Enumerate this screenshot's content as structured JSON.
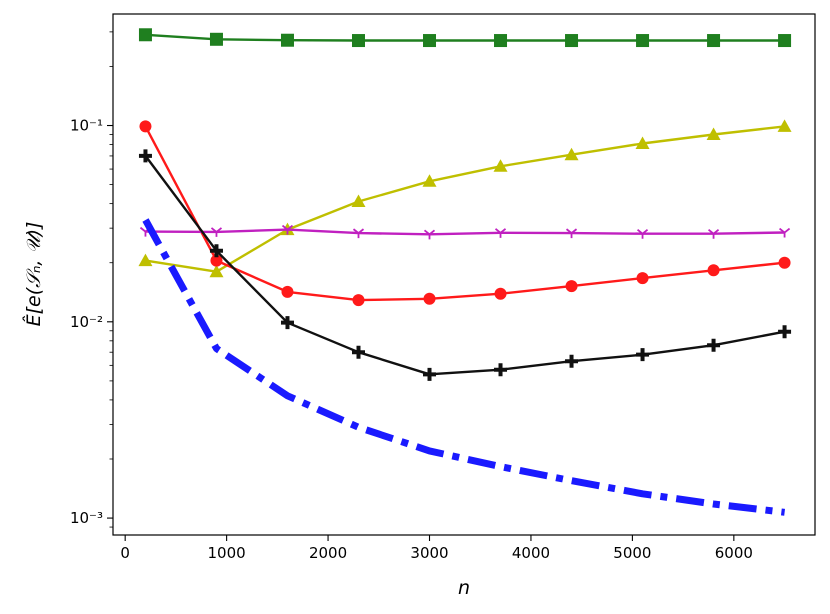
{
  "chart_data": {
    "type": "line",
    "title": "",
    "xlabel": "n",
    "ylabel": "Ê[e(𝒮ₙ, 𝒰)]",
    "xlim": [
      -120,
      6800
    ],
    "ylim": [
      0.00082,
      0.37
    ],
    "yscale": "log",
    "grid": false,
    "legend": "none",
    "x_ticks": [
      0,
      1000,
      2000,
      3000,
      4000,
      5000,
      6000
    ],
    "x_tick_labels": [
      "0",
      "1000",
      "2000",
      "3000",
      "4000",
      "5000",
      "6000"
    ],
    "y_ticks": [
      0.001,
      0.01,
      0.1
    ],
    "y_tick_labels": [
      "10⁻³",
      "10⁻²",
      "10⁻¹"
    ],
    "series": [
      {
        "color": "#1f7f1f",
        "marker": "square",
        "line_style": "solid",
        "x": [
          200,
          900,
          1600,
          2300,
          3000,
          3700,
          4400,
          5100,
          5800,
          6500
        ],
        "values": [
          0.29,
          0.275,
          0.272,
          0.271,
          0.271,
          0.271,
          0.271,
          0.271,
          0.271,
          0.271
        ]
      },
      {
        "color": "#bfbf00",
        "marker": "triangle",
        "line_style": "solid",
        "x": [
          200,
          900,
          1600,
          2300,
          3000,
          3700,
          4400,
          5100,
          5800,
          6500
        ],
        "values": [
          0.0205,
          0.018,
          0.0295,
          0.041,
          0.052,
          0.062,
          0.071,
          0.081,
          0.09,
          0.099
        ]
      },
      {
        "color": "#ff1a1a",
        "marker": "circle",
        "line_style": "solid",
        "x": [
          200,
          900,
          1600,
          2300,
          3000,
          3700,
          4400,
          5100,
          5800,
          6500
        ],
        "values": [
          0.099,
          0.0205,
          0.0142,
          0.0129,
          0.0131,
          0.0139,
          0.0152,
          0.0167,
          0.0183,
          0.02
        ]
      },
      {
        "color": "#c020c0",
        "marker": "tri-down",
        "line_style": "solid",
        "x": [
          200,
          900,
          1600,
          2300,
          3000,
          3700,
          4400,
          5100,
          5800,
          6500
        ],
        "values": [
          0.0288,
          0.0287,
          0.0295,
          0.0283,
          0.0279,
          0.0284,
          0.0283,
          0.0281,
          0.0281,
          0.0285
        ]
      },
      {
        "color": "#111111",
        "marker": "plus",
        "line_style": "solid",
        "x": [
          200,
          900,
          1600,
          2300,
          3000,
          3700,
          4400,
          5100,
          5800,
          6500
        ],
        "values": [
          0.07,
          0.023,
          0.0099,
          0.007,
          0.0054,
          0.0057,
          0.0063,
          0.0068,
          0.0076,
          0.0089
        ]
      },
      {
        "color": "#1a1aff",
        "marker": "none",
        "line_style": "dashdot",
        "x": [
          200,
          900,
          1600,
          2300,
          3000,
          3700,
          4400,
          5100,
          5800,
          6500
        ],
        "values": [
          0.033,
          0.0073,
          0.0042,
          0.0029,
          0.0022,
          0.00183,
          0.00155,
          0.00133,
          0.00118,
          0.00107
        ]
      }
    ]
  }
}
